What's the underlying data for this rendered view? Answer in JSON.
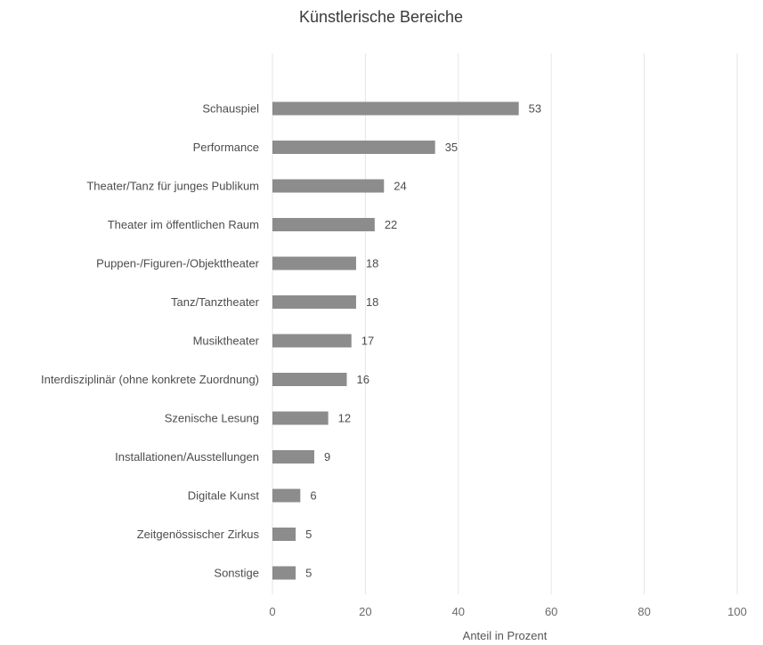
{
  "chart_data": {
    "type": "bar",
    "orientation": "horizontal",
    "title": "Künstlerische Bereiche",
    "xlabel": "Anteil in Prozent",
    "ylabel": "",
    "xlim": [
      0,
      100
    ],
    "xticks": [
      0,
      20,
      40,
      60,
      80,
      100
    ],
    "grid": true,
    "bar_color": "#8c8c8c",
    "categories": [
      "Schauspiel",
      "Performance",
      "Theater/Tanz für junges Publikum",
      "Theater im öffentlichen Raum",
      "Puppen-/Figuren-/Objekttheater",
      "Tanz/Tanztheater",
      "Musiktheater",
      "Interdisziplinär (ohne konkrete Zuordnung)",
      "Szenische Lesung",
      "Installationen/Ausstellungen",
      "Digitale Kunst",
      "Zeitgenössischer Zirkus",
      "Sonstige"
    ],
    "values": [
      53,
      35,
      24,
      22,
      18,
      18,
      17,
      16,
      12,
      9,
      6,
      5,
      5
    ]
  }
}
